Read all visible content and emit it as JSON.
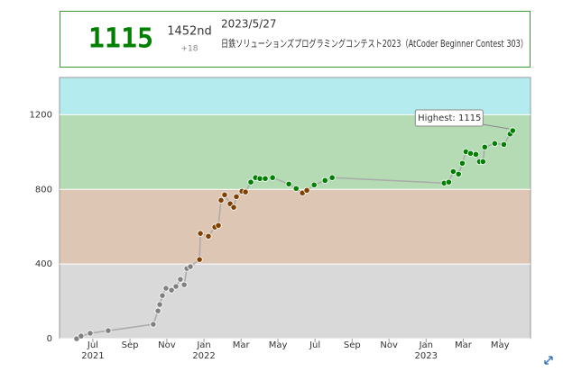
{
  "header": {
    "rating": "1115",
    "rank": "1452nd",
    "diff": "+18",
    "date": "2023/5/27",
    "contest": "日鉄ソリューションズプログラミングコンテスト2023（AtCoder Beginner Contest 303）"
  },
  "chart_data": {
    "type": "line",
    "x": [
      2021.427,
      2021.447,
      2021.488,
      2021.569,
      2021.772,
      2021.793,
      2021.801,
      2021.813,
      2021.829,
      2021.854,
      2021.874,
      2021.894,
      2021.911,
      2021.923,
      2021.939,
      2021.98,
      2021.984,
      2022.02,
      2022.049,
      2022.065,
      2022.077,
      2022.093,
      2022.118,
      2022.134,
      2022.146,
      2022.171,
      2022.187,
      2022.211,
      2022.232,
      2022.252,
      2022.276,
      2022.309,
      2022.382,
      2022.415,
      2022.443,
      2022.463,
      2022.496,
      2022.545,
      2022.577,
      2023.081,
      2023.102,
      2023.122,
      2023.146,
      2023.163,
      2023.179,
      2023.2,
      2023.224,
      2023.24,
      2023.256,
      2023.264,
      2023.309,
      2023.35,
      2023.378,
      2023.39
    ],
    "values": [
      0,
      14,
      29,
      43,
      77,
      149,
      183,
      231,
      270,
      260,
      280,
      318,
      289,
      376,
      386,
      424,
      564,
      549,
      598,
      607,
      742,
      771,
      723,
      704,
      761,
      790,
      786,
      839,
      863,
      858,
      858,
      863,
      829,
      805,
      781,
      795,
      824,
      848,
      863,
      834,
      839,
      896,
      882,
      940,
      1002,
      993,
      988,
      949,
      949,
      1027,
      1046,
      1041,
      1097,
      1115
    ],
    "xlim": [
      2021.35,
      2023.47
    ],
    "ylim": [
      0,
      1400
    ],
    "yticks": [
      0,
      400,
      800,
      1200
    ],
    "xticks": [
      {
        "value": 2021.5,
        "label": "Jul"
      },
      {
        "value": 2021.667,
        "label": "Sep"
      },
      {
        "value": 2021.833,
        "label": "Nov"
      },
      {
        "value": 2022.0,
        "label": "Jan"
      },
      {
        "value": 2022.167,
        "label": "Mar"
      },
      {
        "value": 2022.333,
        "label": "May"
      },
      {
        "value": 2022.5,
        "label": "Jul"
      },
      {
        "value": 2022.667,
        "label": "Sep"
      },
      {
        "value": 2022.833,
        "label": "Nov"
      },
      {
        "value": 2023.0,
        "label": "Jan"
      },
      {
        "value": 2023.167,
        "label": "Mar"
      },
      {
        "value": 2023.333,
        "label": "May"
      }
    ],
    "xtick_years": [
      {
        "value": 2021.5,
        "label": "2021"
      },
      {
        "value": 2022.0,
        "label": "2022"
      },
      {
        "value": 2023.0,
        "label": "2023"
      }
    ],
    "bands": [
      {
        "from": 0,
        "to": 400,
        "color": "#d9d9d9",
        "point": "#808080"
      },
      {
        "from": 400,
        "to": 800,
        "color": "#ddc6b3",
        "point": "#804000"
      },
      {
        "from": 800,
        "to": 1200,
        "color": "#b4dbb4",
        "point": "#008000"
      },
      {
        "from": 1200,
        "to": 1400,
        "color": "#b3ebee",
        "point": "#00c0c0"
      }
    ],
    "line_color": "#aaaaaa",
    "tooltip": "Highest: 1115"
  }
}
